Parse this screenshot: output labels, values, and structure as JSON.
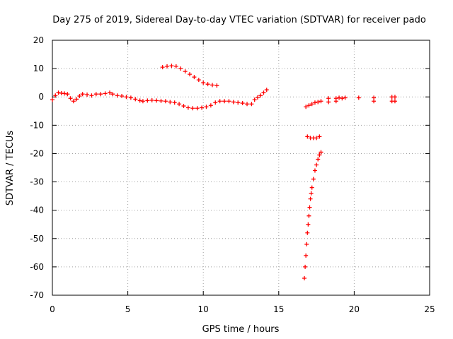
{
  "chart_data": {
    "type": "scatter",
    "title": "Day 275 of 2019, Sidereal Day-to-day VTEC variation (SDTVAR) for receiver pado",
    "xlabel": "GPS time / hours",
    "ylabel": "SDTVAR / TECUs",
    "xlim": [
      0,
      25
    ],
    "ylim": [
      -70,
      20
    ],
    "xticks": [
      0,
      5,
      10,
      15,
      20,
      25
    ],
    "yticks": [
      -70,
      -60,
      -50,
      -40,
      -30,
      -20,
      -10,
      0,
      10,
      20
    ],
    "grid": true,
    "marker": "+",
    "color": "#ff0000",
    "series": [
      {
        "name": "SDTVAR",
        "points": [
          [
            0.0,
            -1.0
          ],
          [
            0.2,
            0.5
          ],
          [
            0.4,
            1.5
          ],
          [
            0.6,
            1.3
          ],
          [
            0.8,
            1.2
          ],
          [
            1.0,
            1.0
          ],
          [
            1.2,
            -0.5
          ],
          [
            1.4,
            -1.5
          ],
          [
            1.6,
            -0.8
          ],
          [
            1.8,
            0.3
          ],
          [
            2.0,
            1.0
          ],
          [
            2.3,
            0.8
          ],
          [
            2.6,
            0.5
          ],
          [
            2.9,
            1.0
          ],
          [
            3.2,
            1.0
          ],
          [
            3.5,
            1.2
          ],
          [
            3.8,
            1.5
          ],
          [
            4.0,
            1.0
          ],
          [
            4.3,
            0.5
          ],
          [
            4.6,
            0.3
          ],
          [
            4.9,
            0.0
          ],
          [
            5.2,
            -0.3
          ],
          [
            5.5,
            -0.8
          ],
          [
            5.8,
            -1.3
          ],
          [
            6.0,
            -1.5
          ],
          [
            6.3,
            -1.3
          ],
          [
            6.6,
            -1.2
          ],
          [
            6.9,
            -1.3
          ],
          [
            7.2,
            -1.4
          ],
          [
            7.5,
            -1.5
          ],
          [
            7.8,
            -1.8
          ],
          [
            8.1,
            -2.0
          ],
          [
            8.4,
            -2.5
          ],
          [
            8.7,
            -3.2
          ],
          [
            9.0,
            -3.8
          ],
          [
            9.3,
            -4.0
          ],
          [
            9.6,
            -4.0
          ],
          [
            9.9,
            -3.8
          ],
          [
            10.2,
            -3.5
          ],
          [
            10.5,
            -3.0
          ],
          [
            10.8,
            -2.0
          ],
          [
            11.1,
            -1.5
          ],
          [
            11.4,
            -1.5
          ],
          [
            11.7,
            -1.5
          ],
          [
            12.0,
            -1.8
          ],
          [
            12.3,
            -2.0
          ],
          [
            12.6,
            -2.2
          ],
          [
            12.9,
            -2.5
          ],
          [
            13.2,
            -2.5
          ],
          [
            13.4,
            -1.0
          ],
          [
            13.6,
            -0.2
          ],
          [
            13.8,
            0.5
          ],
          [
            14.0,
            1.5
          ],
          [
            14.2,
            2.5
          ],
          [
            7.3,
            10.5
          ],
          [
            7.6,
            10.8
          ],
          [
            7.9,
            11.0
          ],
          [
            8.2,
            10.8
          ],
          [
            8.5,
            10.0
          ],
          [
            8.8,
            9.0
          ],
          [
            9.1,
            8.0
          ],
          [
            9.4,
            7.0
          ],
          [
            9.7,
            6.0
          ],
          [
            10.0,
            5.0
          ],
          [
            10.3,
            4.5
          ],
          [
            10.6,
            4.2
          ],
          [
            10.9,
            4.0
          ],
          [
            16.8,
            -3.5
          ],
          [
            17.0,
            -3.0
          ],
          [
            17.2,
            -2.5
          ],
          [
            17.4,
            -2.0
          ],
          [
            17.6,
            -1.8
          ],
          [
            17.8,
            -1.5
          ],
          [
            18.3,
            -0.5
          ],
          [
            18.3,
            -1.8
          ],
          [
            18.8,
            -0.5
          ],
          [
            18.8,
            -1.5
          ],
          [
            19.0,
            -0.3
          ],
          [
            19.2,
            -0.5
          ],
          [
            19.4,
            -0.3
          ],
          [
            20.3,
            -0.3
          ],
          [
            21.3,
            -0.3
          ],
          [
            21.3,
            -1.5
          ],
          [
            22.5,
            0.0
          ],
          [
            22.5,
            -1.5
          ],
          [
            22.7,
            0.0
          ],
          [
            22.7,
            -1.5
          ],
          [
            16.9,
            -14.0
          ],
          [
            17.1,
            -14.5
          ],
          [
            17.3,
            -14.5
          ],
          [
            17.5,
            -14.5
          ],
          [
            17.7,
            -14.0
          ],
          [
            16.7,
            -64.0
          ],
          [
            16.75,
            -60.0
          ],
          [
            16.8,
            -56.0
          ],
          [
            16.85,
            -52.0
          ],
          [
            16.9,
            -48.0
          ],
          [
            16.95,
            -45.0
          ],
          [
            17.0,
            -42.0
          ],
          [
            17.05,
            -39.0
          ],
          [
            17.1,
            -36.0
          ],
          [
            17.15,
            -34.0
          ],
          [
            17.2,
            -32.0
          ],
          [
            17.3,
            -29.0
          ],
          [
            17.4,
            -26.0
          ],
          [
            17.5,
            -24.0
          ],
          [
            17.6,
            -22.0
          ],
          [
            17.7,
            -20.5
          ],
          [
            17.8,
            -19.5
          ]
        ]
      }
    ]
  }
}
